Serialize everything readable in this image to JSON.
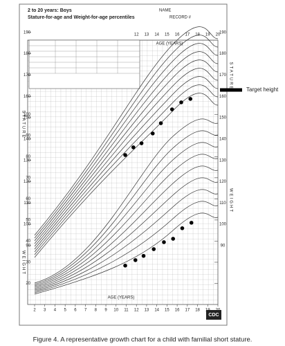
{
  "header": {
    "title": "2 to 20 years: Boys",
    "subtitle": "Stature-for-age and Weight-for-age percentiles",
    "name_label": "NAME",
    "record_label": "RECORD #"
  },
  "caption": "Figure 4. A representative growth chart for a child with familial short stature.",
  "logo": "CDC",
  "chart_data": [
    {
      "type": "scatter",
      "y_label": "STATURE",
      "x_label": "AGE (YEARS)",
      "x": [
        10.9,
        11.7,
        12.5,
        13.6,
        14.4,
        15.5,
        16.4,
        17.3
      ],
      "values": [
        132.5,
        136.1,
        138,
        142.6,
        147.4,
        153.9,
        157.2,
        158.8
      ],
      "color": "#000000",
      "xlim": [
        2,
        20
      ],
      "xticks": [
        2,
        3,
        4,
        5,
        6,
        7,
        8,
        9,
        10,
        11,
        12,
        13,
        14,
        15,
        16,
        17,
        18,
        19,
        20
      ],
      "ylim": [
        77,
        200
      ],
      "yticks": [
        90,
        100,
        110,
        120,
        130,
        140,
        150,
        160,
        170,
        180,
        190
      ],
      "target_height": 163,
      "annotation": "Target height"
    },
    {
      "type": "scatter",
      "y_label": "WEIGHT",
      "x_label": "AGE (YEARS)",
      "x": [
        10.9,
        11.9,
        12.7,
        13.7,
        14.7,
        15.6,
        16.5,
        17.4
      ],
      "values": [
        28.4,
        31,
        33,
        36.2,
        39.5,
        41.1,
        46.1,
        48.7
      ],
      "color": "#000000",
      "xlim": [
        2,
        20
      ],
      "ylim": [
        10,
        105
      ],
      "yticks": [
        20,
        30,
        40,
        50,
        60,
        70,
        80,
        90,
        100
      ]
    }
  ]
}
